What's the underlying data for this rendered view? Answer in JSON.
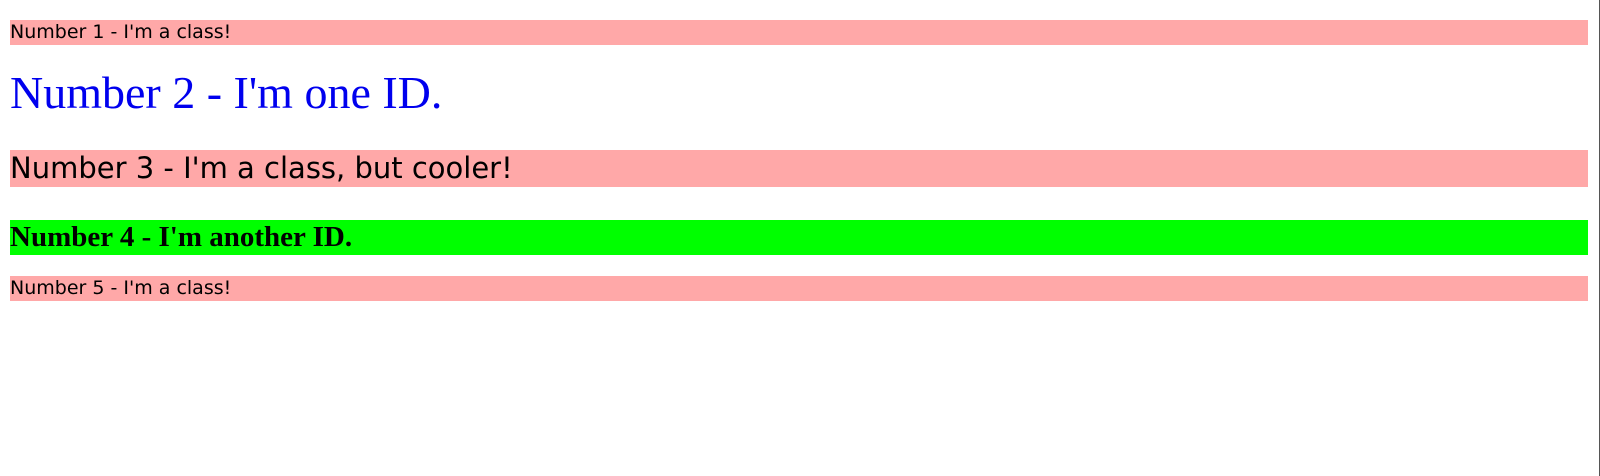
{
  "colors": {
    "class_background": "#ffa8a8",
    "id_one_text": "#0000ee",
    "id_another_background": "#00ff00",
    "right_edge": "#555555"
  },
  "lines": [
    {
      "text": "Number 1 - I'm a class!"
    },
    {
      "text": "Number 2 - I'm one ID."
    },
    {
      "text": "Number 3 - I'm a class, but cooler!"
    },
    {
      "text": "Number 4 - I'm another ID."
    },
    {
      "text": "Number 5 - I'm a class!"
    }
  ]
}
